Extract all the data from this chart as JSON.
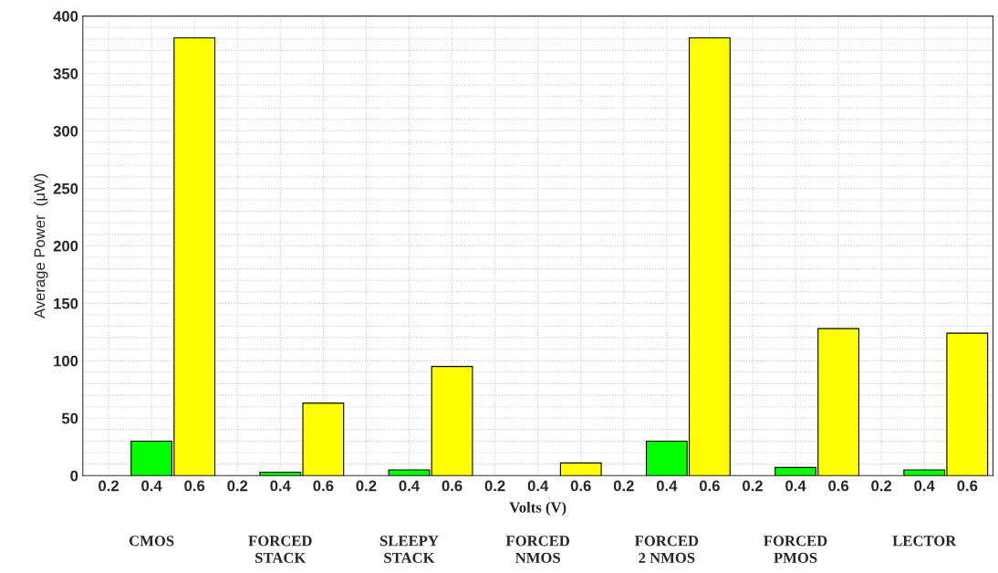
{
  "chart_data": {
    "type": "bar",
    "xlabel": "Volts (V)",
    "ylabel": "Average Power  (μW)",
    "categories": [
      "0.2",
      "0.4",
      "0.6",
      "0.2",
      "0.4",
      "0.6",
      "0.2",
      "0.4",
      "0.6",
      "0.2",
      "0.4",
      "0.6",
      "0.2",
      "0.4",
      "0.6",
      "0.2",
      "0.4",
      "0.6",
      "0.2",
      "0.4",
      "0.6"
    ],
    "values": [
      null,
      30,
      381,
      null,
      3,
      63,
      null,
      5,
      95,
      null,
      null,
      11,
      null,
      30,
      381,
      null,
      7,
      128,
      null,
      5,
      124
    ],
    "colors": [
      null,
      "#00ff00",
      "#ffff00",
      null,
      "#00ff00",
      "#ffff00",
      null,
      "#00ff00",
      "#ffff00",
      null,
      null,
      "#ffff00",
      null,
      "#00ff00",
      "#ffff00",
      null,
      "#00ff00",
      "#ffff00",
      null,
      "#00ff00",
      "#ffff00"
    ],
    "ylim": [
      0,
      400
    ],
    "yticks": [
      0,
      50,
      100,
      150,
      200,
      250,
      300,
      350,
      400
    ],
    "grid": true,
    "annotations": [
      "CMOS",
      "FORCED\nSTACK",
      "SLEEPY\nSTACK",
      "FORCED\nNMOS",
      "FORCED\n2 NMOS",
      "FORCED\nPMOS",
      "LECTOR"
    ]
  }
}
